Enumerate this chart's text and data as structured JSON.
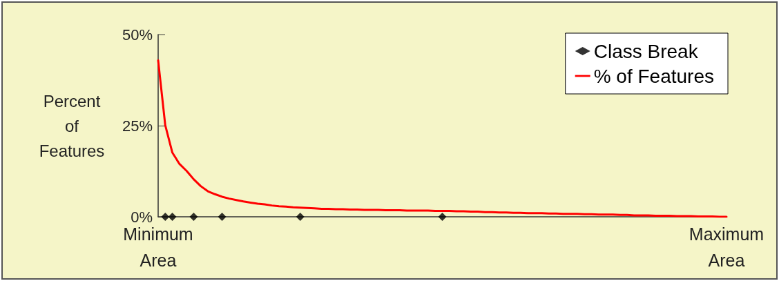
{
  "chart_data": {
    "type": "line",
    "ylabel": "Percent of Features",
    "categories": [
      "Minimum Area",
      null,
      null,
      null,
      null,
      null,
      null,
      null,
      null,
      null,
      null,
      null,
      null,
      null,
      null,
      null,
      null,
      null,
      null,
      null,
      null,
      null,
      null,
      null,
      null,
      null,
      null,
      null,
      null,
      null,
      null,
      null,
      null,
      null,
      null,
      null,
      null,
      null,
      null,
      null,
      null,
      null,
      null,
      null,
      null,
      null,
      null,
      null,
      null,
      null,
      null,
      null,
      null,
      null,
      null,
      null,
      null,
      null,
      null,
      null,
      null,
      null,
      null,
      null,
      null,
      null,
      null,
      null,
      null,
      null,
      null,
      null,
      null,
      null,
      null,
      null,
      null,
      null,
      null,
      null,
      "Maximum Area"
    ],
    "ylim": [
      0,
      50
    ],
    "yticks": [
      {
        "value": 0,
        "label": "0%"
      },
      {
        "value": 25,
        "label": "25%"
      },
      {
        "value": 50,
        "label": "50%"
      }
    ],
    "grid": false,
    "legend": "top right",
    "series": [
      {
        "name": "Class Break",
        "type": "scatter",
        "color": "#000000",
        "marker": "diamond",
        "values": [
          null,
          0,
          0,
          null,
          null,
          0,
          null,
          null,
          null,
          0,
          null,
          null,
          null,
          null,
          null,
          null,
          null,
          null,
          null,
          null,
          0,
          null,
          null,
          null,
          null,
          null,
          null,
          null,
          null,
          null,
          null,
          null,
          null,
          null,
          null,
          null,
          null,
          null,
          null,
          null,
          0,
          null,
          null,
          null,
          null,
          null,
          null,
          null,
          null,
          null,
          null,
          null,
          null,
          null,
          null,
          null,
          null,
          null,
          null,
          null,
          null,
          null,
          null,
          null,
          null,
          null,
          null,
          null,
          null,
          null,
          null,
          null,
          null,
          null,
          null,
          null,
          null,
          null,
          null,
          null,
          null
        ]
      },
      {
        "name": "% of Features",
        "color": "#ff0000",
        "marker": "none",
        "line_style": "solid",
        "values": [
          42.9,
          25.1,
          17.6,
          14.5,
          12.6,
          10.3,
          8.4,
          7.0,
          6.2,
          5.5,
          5.0,
          4.6,
          4.2,
          3.9,
          3.6,
          3.4,
          3.1,
          2.9,
          2.8,
          2.6,
          2.5,
          2.4,
          2.3,
          2.2,
          2.2,
          2.1,
          2.1,
          2.0,
          2.0,
          1.9,
          1.9,
          1.9,
          1.8,
          1.8,
          1.8,
          1.7,
          1.7,
          1.7,
          1.7,
          1.6,
          1.6,
          1.6,
          1.5,
          1.5,
          1.4,
          1.4,
          1.3,
          1.3,
          1.2,
          1.2,
          1.1,
          1.1,
          1.0,
          1.0,
          1.0,
          0.9,
          0.9,
          0.8,
          0.8,
          0.8,
          0.7,
          0.7,
          0.6,
          0.6,
          0.6,
          0.5,
          0.5,
          0.4,
          0.4,
          0.4,
          0.3,
          0.3,
          0.3,
          0.2,
          0.2,
          0.2,
          0.1,
          0.1,
          0.1,
          0,
          0
        ]
      }
    ]
  }
}
